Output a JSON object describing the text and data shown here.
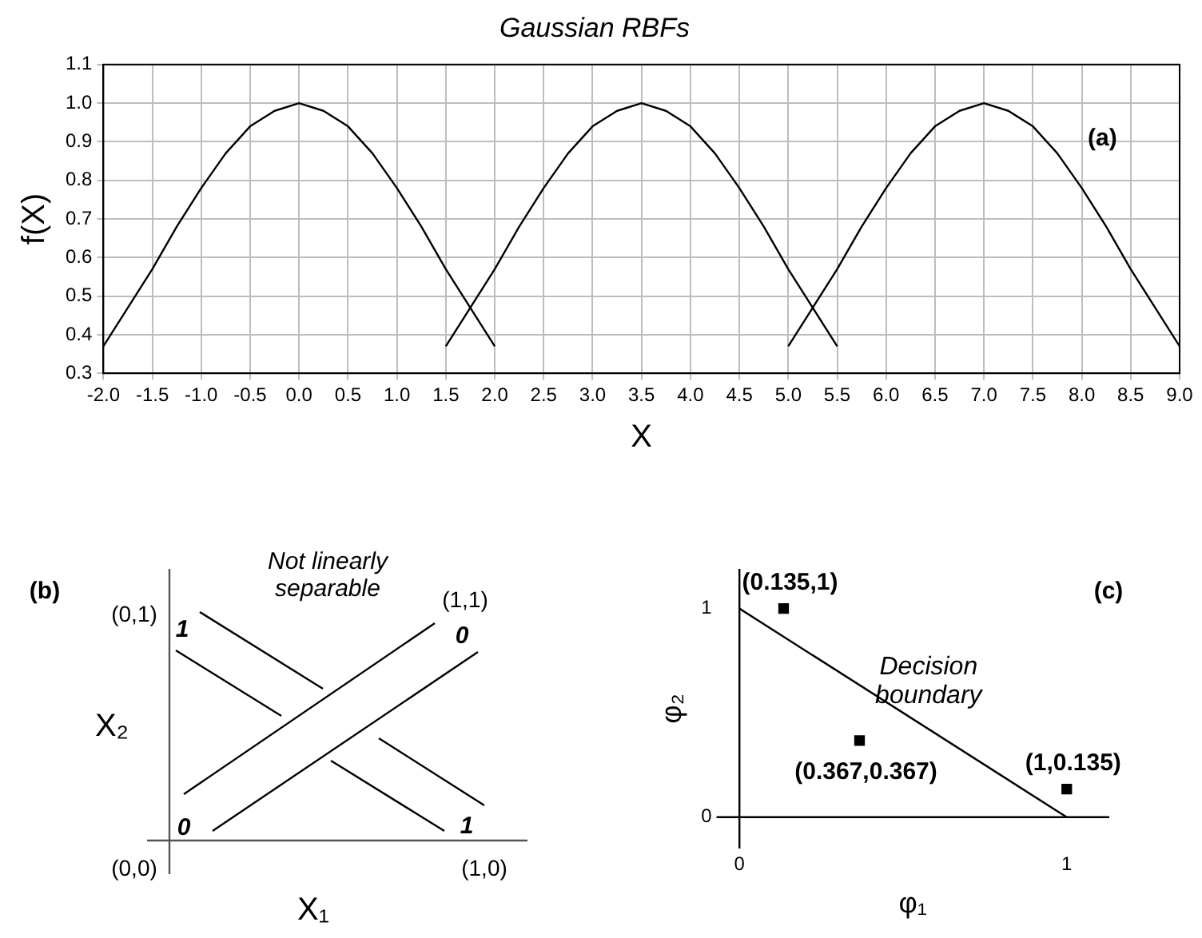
{
  "chart_data": [
    {
      "type": "line",
      "title": "Gaussian RBFs",
      "xlabel": "X",
      "ylabel": "f(X)",
      "xlim": [
        -2,
        9
      ],
      "ylim": [
        0.3,
        1.1
      ],
      "xticks": [
        {
          "value": -2,
          "label": "-2.0"
        },
        {
          "value": -1.5,
          "label": "-1.5"
        },
        {
          "value": -1,
          "label": "-1.0"
        },
        {
          "value": -0.5,
          "label": "-0.5"
        },
        {
          "value": 0,
          "label": "0.0"
        },
        0.5,
        {
          "value": 1,
          "label": "1.0"
        },
        1.5,
        {
          "value": 2,
          "label": "2.0"
        },
        2.5,
        {
          "value": 3,
          "label": "3.0"
        },
        3.5,
        {
          "value": 4,
          "label": "4.0"
        },
        4.5,
        {
          "value": 5,
          "label": "5.0"
        },
        5.5,
        {
          "value": 6,
          "label": "6.0"
        },
        6.5,
        {
          "value": 7,
          "label": "7.0"
        },
        7.5,
        {
          "value": 8,
          "label": "8.0"
        },
        8.5,
        {
          "value": 9,
          "label": "9.0"
        }
      ],
      "yticks": [
        0.3,
        0.4,
        0.5,
        0.6,
        0.7,
        0.8,
        0.9,
        {
          "value": 1,
          "label": "1.0"
        },
        1.1
      ],
      "grid": true,
      "legend": false,
      "annotations": [
        "(a)"
      ],
      "series": [
        {
          "color": "#000000",
          "x": [
            -2,
            -1.75,
            -1.5,
            -1.25,
            -1,
            -0.75,
            -0.5,
            -0.25,
            0,
            0.25,
            0.5,
            0.75,
            1,
            1.25,
            1.5,
            1.75,
            2
          ],
          "values": [
            0.37,
            0.47,
            0.57,
            0.68,
            0.78,
            0.87,
            0.94,
            0.98,
            1,
            0.98,
            0.94,
            0.87,
            0.78,
            0.68,
            0.57,
            0.47,
            0.37
          ]
        },
        {
          "color": "#000000",
          "x": [
            1.5,
            1.75,
            2,
            2.25,
            2.5,
            2.75,
            3,
            3.25,
            3.5,
            3.75,
            4,
            4.25,
            4.5,
            4.75,
            5,
            5.25,
            5.5
          ],
          "values": [
            0.37,
            0.47,
            0.57,
            0.68,
            0.78,
            0.87,
            0.94,
            0.98,
            1,
            0.98,
            0.94,
            0.87,
            0.78,
            0.68,
            0.57,
            0.47,
            0.37
          ]
        },
        {
          "color": "#000000",
          "x": [
            5,
            5.25,
            5.5,
            5.75,
            6,
            6.25,
            6.5,
            6.75,
            7,
            7.25,
            7.5,
            7.75,
            8,
            8.25,
            8.5,
            8.75,
            9
          ],
          "values": [
            0.37,
            0.47,
            0.57,
            0.68,
            0.78,
            0.87,
            0.94,
            0.98,
            1,
            0.98,
            0.94,
            0.87,
            0.78,
            0.68,
            0.57,
            0.47,
            0.37
          ]
        }
      ]
    },
    {
      "type": "other",
      "xlabel": "X₁",
      "ylabel": "X₂",
      "annotations": [
        "(b)",
        "Not linearly separable",
        "(0,0)",
        "(1,0)",
        "(0,1)",
        "(1,1)",
        "1",
        "0",
        "0",
        "1"
      ]
    },
    {
      "type": "scatter",
      "xlabel": "φ₁",
      "ylabel": "φ₂",
      "xlim": [
        -0.07,
        1.13
      ],
      "ylim": [
        -0.15,
        1.19
      ],
      "xticks": [
        0,
        1
      ],
      "yticks": [
        0,
        1
      ],
      "grid": false,
      "legend": false,
      "annotations": [
        "(c)",
        "Decision boundary",
        {
          "text": "(0.135,1)",
          "x": 0.135,
          "y": 1
        },
        {
          "text": "(0.367,0.367)",
          "x": 0.367,
          "y": 0.367
        },
        {
          "text": "(1,0.135)",
          "x": 1,
          "y": 0.135
        }
      ],
      "series": [
        {
          "type": "line",
          "color": "#000000",
          "x": [
            0,
            1
          ],
          "values": [
            1,
            0
          ]
        },
        {
          "type": "scatter",
          "color": "#000000",
          "marker": "square",
          "x": [
            0.135,
            0.367,
            1
          ],
          "values": [
            1,
            0.367,
            0.135
          ]
        }
      ]
    }
  ]
}
